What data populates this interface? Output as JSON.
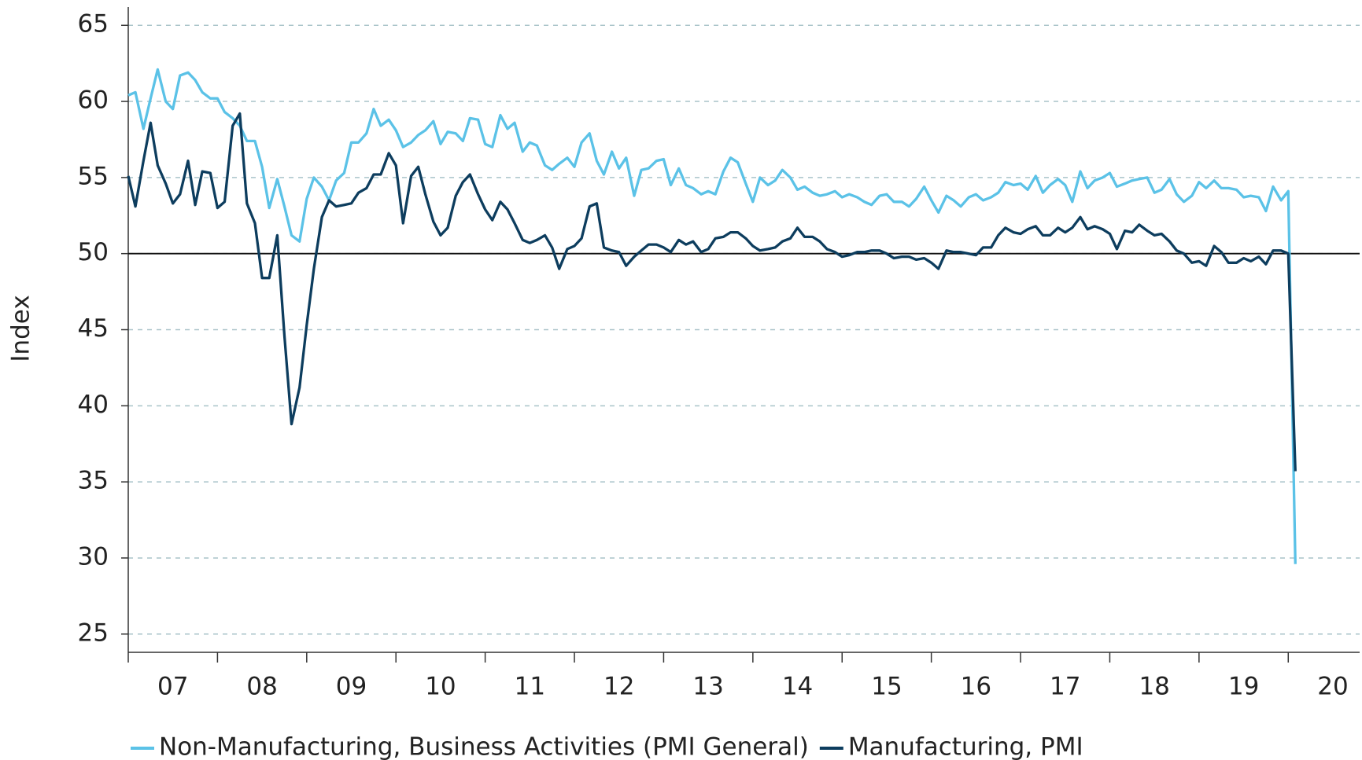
{
  "chart_data": {
    "type": "line",
    "y_label": "Index",
    "x": [
      2007,
      2007.08,
      2007.17,
      2007.25,
      2007.33,
      2007.42,
      2007.5,
      2007.58,
      2007.67,
      2007.75,
      2007.83,
      2007.92,
      2008,
      2008.08,
      2008.17,
      2008.25,
      2008.33,
      2008.42,
      2008.5,
      2008.58,
      2008.67,
      2008.75,
      2008.83,
      2008.92,
      2009,
      2009.08,
      2009.17,
      2009.25,
      2009.33,
      2009.42,
      2009.5,
      2009.58,
      2009.67,
      2009.75,
      2009.83,
      2009.92,
      2010,
      2010.08,
      2010.17,
      2010.25,
      2010.33,
      2010.42,
      2010.5,
      2010.58,
      2010.67,
      2010.75,
      2010.83,
      2010.92,
      2011,
      2011.08,
      2011.17,
      2011.25,
      2011.33,
      2011.42,
      2011.5,
      2011.58,
      2011.67,
      2011.75,
      2011.83,
      2011.92,
      2012,
      2012.08,
      2012.17,
      2012.25,
      2012.33,
      2012.42,
      2012.5,
      2012.58,
      2012.67,
      2012.75,
      2012.83,
      2012.92,
      2013,
      2013.08,
      2013.17,
      2013.25,
      2013.33,
      2013.42,
      2013.5,
      2013.58,
      2013.67,
      2013.75,
      2013.83,
      2013.92,
      2014,
      2014.08,
      2014.17,
      2014.25,
      2014.33,
      2014.42,
      2014.5,
      2014.58,
      2014.67,
      2014.75,
      2014.83,
      2014.92,
      2015,
      2015.08,
      2015.17,
      2015.25,
      2015.33,
      2015.42,
      2015.5,
      2015.58,
      2015.67,
      2015.75,
      2015.83,
      2015.92,
      2016,
      2016.08,
      2016.17,
      2016.25,
      2016.33,
      2016.42,
      2016.5,
      2016.58,
      2016.67,
      2016.75,
      2016.83,
      2016.92,
      2017,
      2017.08,
      2017.17,
      2017.25,
      2017.33,
      2017.42,
      2017.5,
      2017.58,
      2017.67,
      2017.75,
      2017.83,
      2017.92,
      2018,
      2018.08,
      2018.17,
      2018.25,
      2018.33,
      2018.42,
      2018.5,
      2018.58,
      2018.67,
      2018.75,
      2018.83,
      2018.92,
      2019,
      2019.08,
      2019.17,
      2019.25,
      2019.33,
      2019.42,
      2019.5,
      2019.58,
      2019.67,
      2019.75,
      2019.83,
      2019.92,
      2020,
      2020.08
    ],
    "series": [
      {
        "name": "Non-Manufacturing, Business Activities (PMI General)",
        "color": "#5bc2e7",
        "values": [
          60.4,
          60.6,
          58.2,
          60.2,
          62.1,
          60.0,
          59.5,
          61.7,
          61.9,
          61.4,
          60.6,
          60.2,
          60.2,
          59.3,
          58.9,
          58.4,
          57.4,
          57.4,
          55.7,
          53.0,
          54.9,
          53.1,
          51.2,
          50.8,
          53.6,
          55.0,
          54.4,
          53.5,
          54.8,
          55.3,
          57.3,
          57.3,
          57.9,
          59.5,
          58.4,
          58.8,
          58.1,
          57.0,
          57.3,
          57.8,
          58.1,
          58.7,
          57.2,
          58.0,
          57.9,
          57.4,
          58.9,
          58.8,
          57.2,
          57.0,
          59.1,
          58.2,
          58.6,
          56.7,
          57.3,
          57.1,
          55.8,
          55.5,
          55.9,
          56.3,
          55.7,
          57.3,
          57.9,
          56.1,
          55.2,
          56.7,
          55.6,
          56.3,
          53.8,
          55.5,
          55.6,
          56.1,
          56.2,
          54.5,
          55.6,
          54.5,
          54.3,
          53.9,
          54.1,
          53.9,
          55.4,
          56.3,
          56.0,
          54.6,
          53.4,
          55.0,
          54.5,
          54.8,
          55.5,
          55.0,
          54.2,
          54.4,
          54.0,
          53.8,
          53.9,
          54.1,
          53.7,
          53.9,
          53.7,
          53.4,
          53.2,
          53.8,
          53.9,
          53.4,
          53.4,
          53.1,
          53.6,
          54.4,
          53.5,
          52.7,
          53.8,
          53.5,
          53.1,
          53.7,
          53.9,
          53.5,
          53.7,
          54.0,
          54.7,
          54.5,
          54.6,
          54.2,
          55.1,
          54.0,
          54.5,
          54.9,
          54.5,
          53.4,
          55.4,
          54.3,
          54.8,
          55.0,
          55.3,
          54.4,
          54.6,
          54.8,
          54.9,
          55.0,
          54.0,
          54.2,
          54.9,
          53.9,
          53.4,
          53.8,
          54.7,
          54.3,
          54.8,
          54.3,
          54.3,
          54.2,
          53.7,
          53.8,
          53.7,
          52.8,
          54.4,
          53.5,
          54.1,
          29.6
        ]
      },
      {
        "name": "Manufacturing, PMI",
        "color": "#0d3d5e",
        "values": [
          55.1,
          53.1,
          56.1,
          58.6,
          55.8,
          54.6,
          53.3,
          53.9,
          56.1,
          53.2,
          55.4,
          55.3,
          53.0,
          53.4,
          58.4,
          59.2,
          53.3,
          52.0,
          48.4,
          48.4,
          51.2,
          44.6,
          38.8,
          41.2,
          45.3,
          49.0,
          52.4,
          53.5,
          53.1,
          53.2,
          53.3,
          54.0,
          54.3,
          55.2,
          55.2,
          56.6,
          55.8,
          52.0,
          55.1,
          55.7,
          53.9,
          52.1,
          51.2,
          51.7,
          53.8,
          54.7,
          55.2,
          53.9,
          52.9,
          52.2,
          53.4,
          52.9,
          52.0,
          50.9,
          50.7,
          50.9,
          51.2,
          50.4,
          49.0,
          50.3,
          50.5,
          51.0,
          53.1,
          53.3,
          50.4,
          50.2,
          50.1,
          49.2,
          49.8,
          50.2,
          50.6,
          50.6,
          50.4,
          50.1,
          50.9,
          50.6,
          50.8,
          50.1,
          50.3,
          51.0,
          51.1,
          51.4,
          51.4,
          51.0,
          50.5,
          50.2,
          50.3,
          50.4,
          50.8,
          51.0,
          51.7,
          51.1,
          51.1,
          50.8,
          50.3,
          50.1,
          49.8,
          49.9,
          50.1,
          50.1,
          50.2,
          50.2,
          50.0,
          49.7,
          49.8,
          49.8,
          49.6,
          49.7,
          49.4,
          49.0,
          50.2,
          50.1,
          50.1,
          50.0,
          49.9,
          50.4,
          50.4,
          51.2,
          51.7,
          51.4,
          51.3,
          51.6,
          51.8,
          51.2,
          51.2,
          51.7,
          51.4,
          51.7,
          52.4,
          51.6,
          51.8,
          51.6,
          51.3,
          50.3,
          51.5,
          51.4,
          51.9,
          51.5,
          51.2,
          51.3,
          50.8,
          50.2,
          50.0,
          49.4,
          49.5,
          49.2,
          50.5,
          50.1,
          49.4,
          49.4,
          49.7,
          49.5,
          49.8,
          49.3,
          50.2,
          50.2,
          50.0,
          35.7
        ]
      }
    ],
    "xlim": [
      2007,
      2020.8
    ],
    "xticks": [
      {
        "value": 2007,
        "label": "07"
      },
      {
        "value": 2008,
        "label": "08"
      },
      {
        "value": 2009,
        "label": "09"
      },
      {
        "value": 2010,
        "label": "10"
      },
      {
        "value": 2011,
        "label": "11"
      },
      {
        "value": 2012,
        "label": "12"
      },
      {
        "value": 2013,
        "label": "13"
      },
      {
        "value": 2014,
        "label": "14"
      },
      {
        "value": 2015,
        "label": "15"
      },
      {
        "value": 2016,
        "label": "16"
      },
      {
        "value": 2017,
        "label": "17"
      },
      {
        "value": 2018,
        "label": "18"
      },
      {
        "value": 2019,
        "label": "19"
      },
      {
        "value": 2020,
        "label": "20"
      }
    ],
    "ylim": [
      23.8,
      66.2
    ],
    "yticks": [
      25,
      30,
      35,
      40,
      45,
      50,
      55,
      60,
      65
    ],
    "hline": 50,
    "grid": true,
    "legend": "bottom"
  }
}
